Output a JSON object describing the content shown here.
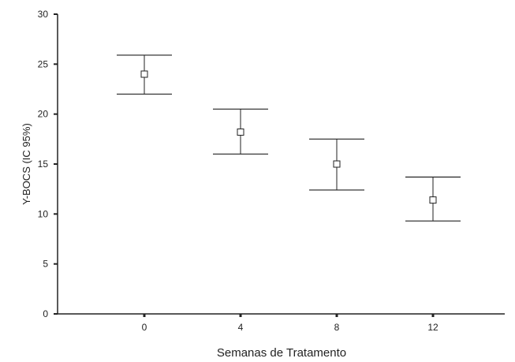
{
  "chart_data": {
    "type": "errorbar",
    "xlabel": "Semanas de Tratamento",
    "ylabel": "Y-BOCS (IC 95%)",
    "categories": [
      "0",
      "4",
      "8",
      "12"
    ],
    "ylim": [
      0,
      30
    ],
    "yticks": [
      0,
      5,
      10,
      15,
      20,
      25,
      30
    ],
    "points": [
      {
        "x": "0",
        "mean": 24.0,
        "lower": 22.0,
        "upper": 25.9
      },
      {
        "x": "4",
        "mean": 18.2,
        "lower": 16.0,
        "upper": 20.5
      },
      {
        "x": "8",
        "mean": 15.0,
        "lower": 12.4,
        "upper": 17.5
      },
      {
        "x": "12",
        "mean": 11.4,
        "lower": 9.3,
        "upper": 13.7
      }
    ],
    "grid": false,
    "marker": "open-square",
    "colors": {
      "line": "#222222",
      "marker_fill": "#ffffff"
    }
  }
}
